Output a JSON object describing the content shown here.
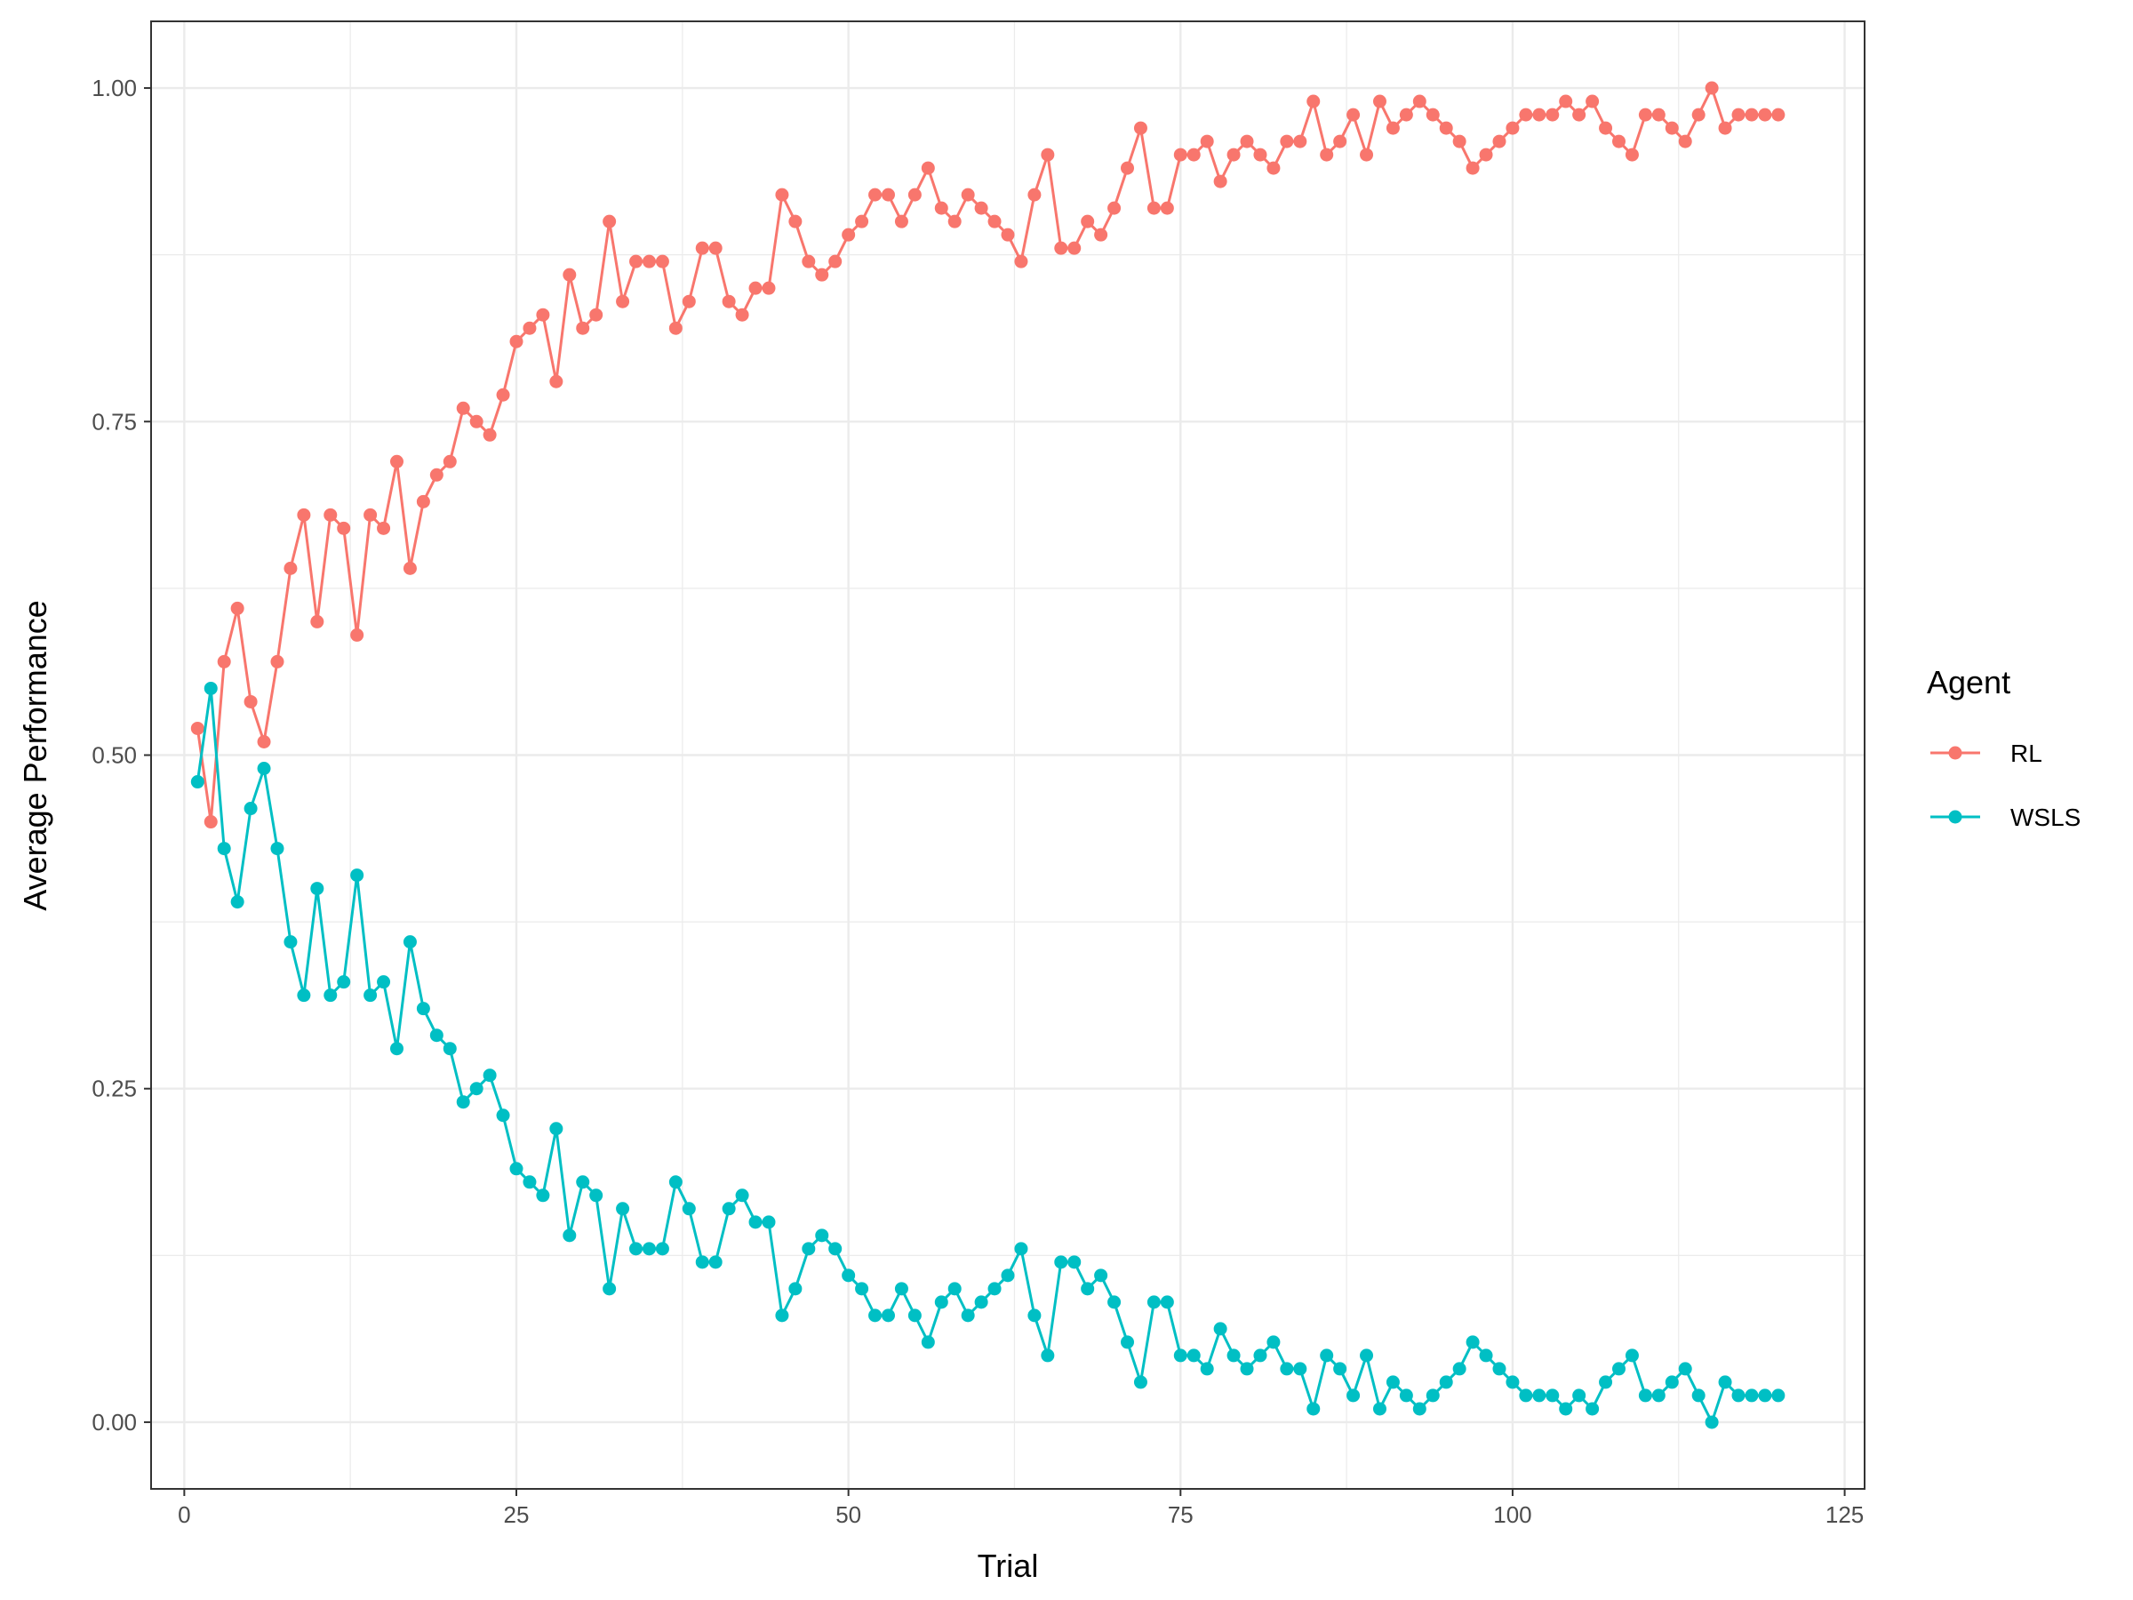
{
  "chart_data": {
    "type": "line",
    "title": "",
    "xlabel": "Trial",
    "ylabel": "Average Performance",
    "xlim": [
      -2.5,
      126.5
    ],
    "ylim": [
      -0.05,
      1.05
    ],
    "x_ticks": [
      0,
      25,
      50,
      75,
      100,
      125
    ],
    "y_ticks": [
      0.0,
      0.25,
      0.5,
      0.75,
      1.0
    ],
    "x_tick_labels": [
      "0",
      "25",
      "50",
      "75",
      "100",
      "125"
    ],
    "y_tick_labels": [
      "0.00",
      "0.25",
      "0.50",
      "0.75",
      "1.00"
    ],
    "grid": true,
    "markers": true,
    "legend": {
      "title": "Agent",
      "position": "right"
    },
    "x": [
      1,
      2,
      3,
      4,
      5,
      6,
      7,
      8,
      9,
      10,
      11,
      12,
      13,
      14,
      15,
      16,
      17,
      18,
      19,
      20,
      21,
      22,
      23,
      24,
      25,
      26,
      27,
      28,
      29,
      30,
      31,
      32,
      33,
      34,
      35,
      36,
      37,
      38,
      39,
      40,
      41,
      42,
      43,
      44,
      45,
      46,
      47,
      48,
      49,
      50,
      51,
      52,
      53,
      54,
      55,
      56,
      57,
      58,
      59,
      60,
      61,
      62,
      63,
      64,
      65,
      66,
      67,
      68,
      69,
      70,
      71,
      72,
      73,
      74,
      75,
      76,
      77,
      78,
      79,
      80,
      81,
      82,
      83,
      84,
      85,
      86,
      87,
      88,
      89,
      90,
      91,
      92,
      93,
      94,
      95,
      96,
      97,
      98,
      99,
      100,
      101,
      102,
      103,
      104,
      105,
      106,
      107,
      108,
      109,
      110,
      111,
      112,
      113,
      114,
      115,
      116,
      117,
      118,
      119,
      120
    ],
    "series": [
      {
        "name": "RL",
        "color": "#F8766D",
        "values": [
          0.52,
          0.45,
          0.57,
          0.61,
          0.54,
          0.51,
          0.57,
          0.64,
          0.68,
          0.6,
          0.68,
          0.67,
          0.59,
          0.68,
          0.67,
          0.72,
          0.64,
          0.69,
          0.71,
          0.72,
          0.76,
          0.75,
          0.74,
          0.77,
          0.81,
          0.82,
          0.83,
          0.78,
          0.86,
          0.82,
          0.83,
          0.9,
          0.84,
          0.87,
          0.87,
          0.87,
          0.82,
          0.84,
          0.88,
          0.88,
          0.84,
          0.83,
          0.85,
          0.85,
          0.92,
          0.9,
          0.87,
          0.86,
          0.87,
          0.89,
          0.9,
          0.92,
          0.92,
          0.9,
          0.92,
          0.94,
          0.91,
          0.9,
          0.92,
          0.91,
          0.9,
          0.89,
          0.87,
          0.92,
          0.95,
          0.88,
          0.88,
          0.9,
          0.89,
          0.91,
          0.94,
          0.97,
          0.91,
          0.91,
          0.95,
          0.95,
          0.96,
          0.93,
          0.95,
          0.96,
          0.95,
          0.94,
          0.96,
          0.96,
          0.99,
          0.95,
          0.96,
          0.98,
          0.95,
          0.99,
          0.97,
          0.98,
          0.99,
          0.98,
          0.97,
          0.96,
          0.94,
          0.95,
          0.96,
          0.97,
          0.98,
          0.98,
          0.98,
          0.99,
          0.98,
          0.99,
          0.97,
          0.96,
          0.95,
          0.98,
          0.98,
          0.97,
          0.96,
          0.98,
          1.0,
          0.97,
          0.98,
          0.98,
          0.98,
          0.98
        ]
      },
      {
        "name": "WSLS",
        "color": "#00BFC4",
        "values": [
          0.48,
          0.55,
          0.43,
          0.39,
          0.46,
          0.49,
          0.43,
          0.36,
          0.32,
          0.4,
          0.32,
          0.33,
          0.41,
          0.32,
          0.33,
          0.28,
          0.36,
          0.31,
          0.29,
          0.28,
          0.24,
          0.25,
          0.26,
          0.23,
          0.19,
          0.18,
          0.17,
          0.22,
          0.14,
          0.18,
          0.17,
          0.1,
          0.16,
          0.13,
          0.13,
          0.13,
          0.18,
          0.16,
          0.12,
          0.12,
          0.16,
          0.17,
          0.15,
          0.15,
          0.08,
          0.1,
          0.13,
          0.14,
          0.13,
          0.11,
          0.1,
          0.08,
          0.08,
          0.1,
          0.08,
          0.06,
          0.09,
          0.1,
          0.08,
          0.09,
          0.1,
          0.11,
          0.13,
          0.08,
          0.05,
          0.12,
          0.12,
          0.1,
          0.11,
          0.09,
          0.06,
          0.03,
          0.09,
          0.09,
          0.05,
          0.05,
          0.04,
          0.07,
          0.05,
          0.04,
          0.05,
          0.06,
          0.04,
          0.04,
          0.01,
          0.05,
          0.04,
          0.02,
          0.05,
          0.01,
          0.03,
          0.02,
          0.01,
          0.02,
          0.03,
          0.04,
          0.06,
          0.05,
          0.04,
          0.03,
          0.02,
          0.02,
          0.02,
          0.01,
          0.02,
          0.01,
          0.03,
          0.04,
          0.05,
          0.02,
          0.02,
          0.03,
          0.04,
          0.02,
          0.0,
          0.03,
          0.02,
          0.02,
          0.02,
          0.02
        ]
      }
    ]
  }
}
